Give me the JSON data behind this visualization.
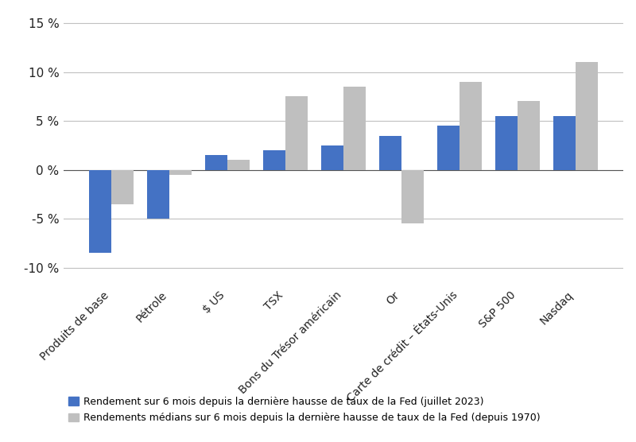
{
  "categories": [
    "Produits de base",
    "Pétrole",
    "$ US",
    "TSX",
    "Bons du Trésor américain",
    "Or",
    "Carte de crédit – États-Unis",
    "S&P 500",
    "Nasdaq"
  ],
  "blue_values": [
    -8.5,
    -5.0,
    1.5,
    2.0,
    2.5,
    3.5,
    4.5,
    5.5,
    5.5
  ],
  "grey_values": [
    -3.5,
    -0.5,
    1.0,
    7.5,
    8.5,
    -5.5,
    9.0,
    7.0,
    11.0
  ],
  "blue_color": "#4472C4",
  "grey_color": "#BFBFBF",
  "ylim": [
    -12,
    16
  ],
  "yticks": [
    -10,
    -5,
    0,
    5,
    10,
    15
  ],
  "ytick_labels": [
    "-10 %",
    "-5 %",
    "0 %",
    "5 %",
    "10 %",
    "15 %"
  ],
  "legend_blue": "Rendement sur 6 mois depuis la dernière hausse de taux de la Fed (juillet 2023)",
  "legend_grey": "Rendements médians sur 6 mois depuis la dernière hausse de taux de la Fed (depuis 1970)",
  "background_color": "#FFFFFF",
  "grid_color": "#C0C0C0"
}
